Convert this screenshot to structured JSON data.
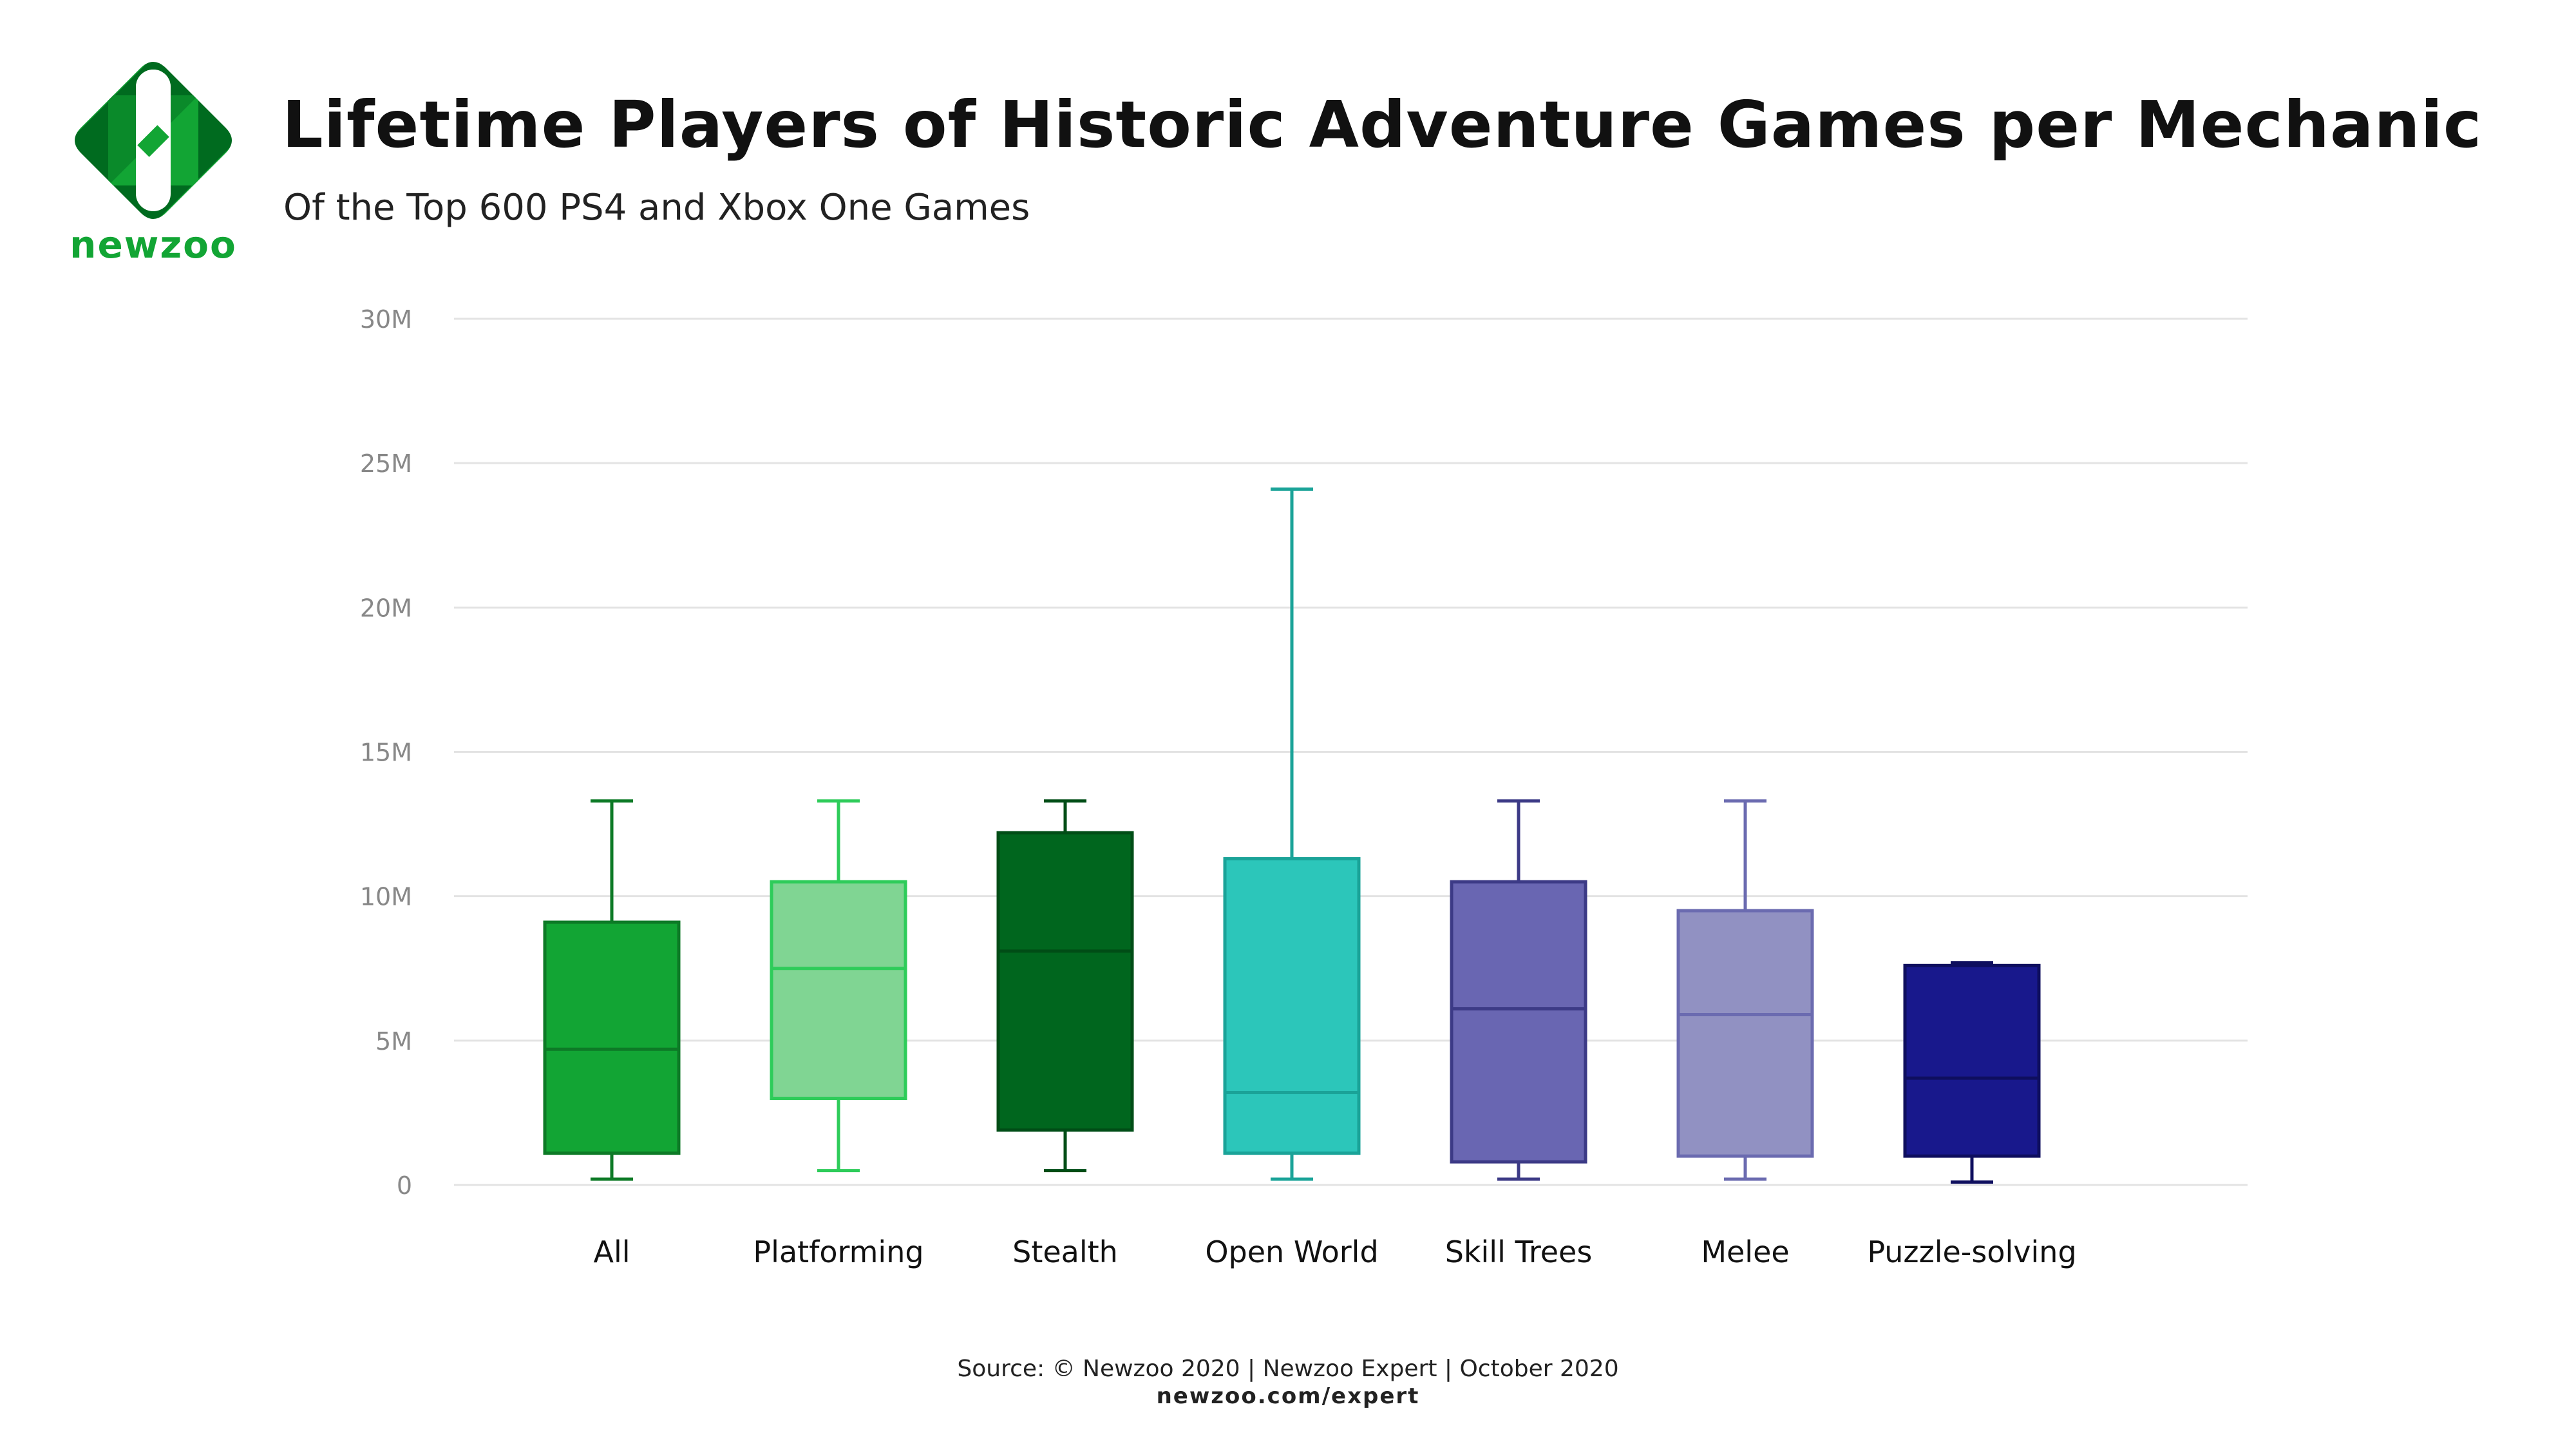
{
  "brand": {
    "name": "newzoo",
    "logo_icon": "newzoo-logo-icon"
  },
  "header": {
    "title": "Lifetime Players of Historic Adventure Games per Mechanic",
    "subtitle": "Of the Top 600 PS4 and Xbox One Games"
  },
  "footer": {
    "source": "Source: © Newzoo 2020 | Newzoo Expert | October 2020",
    "url": "newzoo.com/expert"
  },
  "chart_data": {
    "type": "boxplot",
    "title": "Lifetime Players of Historic Adventure Games per Mechanic",
    "subtitle": "Of the Top 600 PS4 and Xbox One Games",
    "xlabel": "",
    "ylabel": "",
    "ylim": [
      0,
      30
    ],
    "y_unit": "M",
    "y_ticks": [
      0,
      5,
      10,
      15,
      20,
      25,
      30
    ],
    "y_tick_labels": [
      "0",
      "5M",
      "10M",
      "15M",
      "20M",
      "25M",
      "30M"
    ],
    "grid": true,
    "legend": "none",
    "categories": [
      "All",
      "Platforming",
      "Stealth",
      "Open World",
      "Skill Trees",
      "Melee",
      "Puzzle-solving"
    ],
    "boxes": [
      {
        "category": "All",
        "min": 0.2,
        "q1": 1.1,
        "median": 4.7,
        "q3": 9.1,
        "max": 13.3,
        "fill": "#12a534",
        "stroke": "#0d7a26"
      },
      {
        "category": "Platforming",
        "min": 0.5,
        "q1": 3.0,
        "median": 7.5,
        "q3": 10.5,
        "max": 13.3,
        "fill": "#80d593",
        "stroke": "#2ecc5a"
      },
      {
        "category": "Stealth",
        "min": 0.5,
        "q1": 1.9,
        "median": 8.1,
        "q3": 12.2,
        "max": 13.3,
        "fill": "#00661e",
        "stroke": "#004d16"
      },
      {
        "category": "Open World",
        "min": 0.2,
        "q1": 1.1,
        "median": 3.2,
        "q3": 11.3,
        "max": 24.1,
        "fill": "#2cc6ba",
        "stroke": "#1aa398"
      },
      {
        "category": "Skill Trees",
        "min": 0.2,
        "q1": 0.8,
        "median": 6.1,
        "q3": 10.5,
        "max": 13.3,
        "fill": "#6966b2",
        "stroke": "#3c3a86"
      },
      {
        "category": "Melee",
        "min": 0.2,
        "q1": 1.0,
        "median": 5.9,
        "q3": 9.5,
        "max": 13.3,
        "fill": "#9191c2",
        "stroke": "#6b6bb0"
      },
      {
        "category": "Puzzle-solving",
        "min": 0.1,
        "q1": 1.0,
        "median": 3.7,
        "q3": 7.6,
        "max": 7.7,
        "fill": "#18188c",
        "stroke": "#0e0e5e"
      }
    ],
    "colors": {
      "grid": "#e3e3e3",
      "tick_label": "#888888",
      "category_label": "#111111"
    }
  }
}
